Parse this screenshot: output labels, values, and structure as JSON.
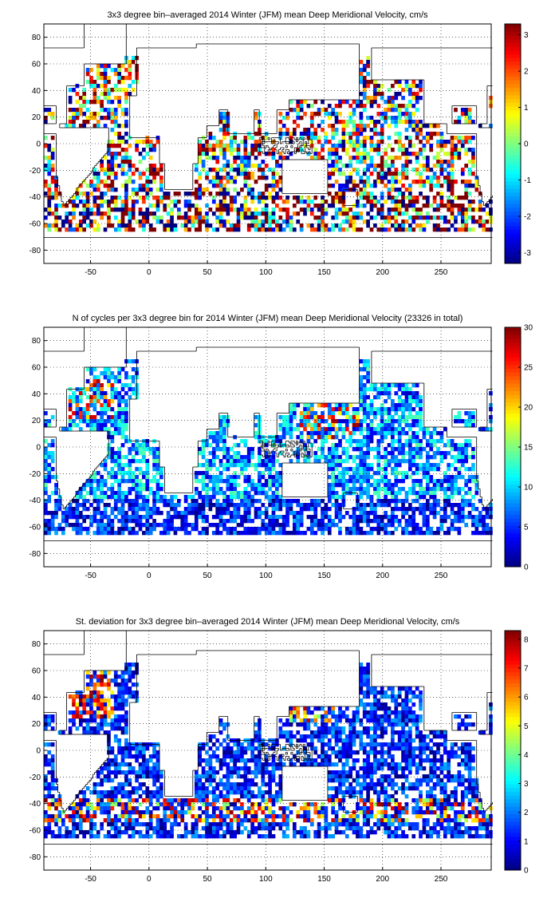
{
  "figure": "triple-panel float velocity statistics",
  "chart_data": [
    {
      "type": "heatmap",
      "title": "3x3 degree bin–averaged 2014 Winter (JFM) mean Deep Meridional Velocity, cm/s",
      "x_ticks": [
        "-50",
        "0",
        "50",
        "100",
        "150",
        "200",
        "250"
      ],
      "y_ticks": [
        "80",
        "60",
        "40",
        "20",
        "0",
        "-20",
        "-40",
        "-60",
        "-80"
      ],
      "xlim": [
        -90,
        293
      ],
      "ylim": [
        -90,
        90
      ],
      "colorbar": {
        "min": -3.3,
        "max": 3.3,
        "ticks": [
          "3",
          "2",
          "1",
          "0",
          "-1",
          "-2",
          "-3"
        ],
        "colormap": "jet"
      },
      "grid": true
    },
    {
      "type": "heatmap",
      "title": "N of cycles per 3x3 degree bin for 2014 Winter (JFM) mean Deep Meridional Velocity (23326 in total)",
      "x_ticks": [
        "-50",
        "0",
        "50",
        "100",
        "150",
        "200",
        "250"
      ],
      "y_ticks": [
        "80",
        "60",
        "40",
        "20",
        "0",
        "-20",
        "-40",
        "-60",
        "-80"
      ],
      "xlim": [
        -90,
        293
      ],
      "ylim": [
        -90,
        90
      ],
      "colorbar": {
        "min": 0,
        "max": 30,
        "ticks": [
          "30",
          "25",
          "20",
          "15",
          "10",
          "5",
          "0"
        ],
        "colormap": "jet"
      },
      "grid": true
    },
    {
      "type": "heatmap",
      "title": "St. deviation for 3x3 degree bin–averaged 2014 Winter (JFM) mean Deep Meridional Velocity, cm/s",
      "x_ticks": [
        "-50",
        "0",
        "50",
        "100",
        "150",
        "200",
        "250"
      ],
      "y_ticks": [
        "80",
        "60",
        "40",
        "20",
        "0",
        "-20",
        "-40",
        "-60",
        "-80"
      ],
      "xlim": [
        -90,
        293
      ],
      "ylim": [
        -90,
        90
      ],
      "colorbar": {
        "min": 0,
        "max": 8.3,
        "ticks": [
          "8",
          "7",
          "6",
          "5",
          "4",
          "3",
          "2",
          "1",
          "0"
        ],
        "colormap": "jet"
      },
      "grid": true
    }
  ]
}
